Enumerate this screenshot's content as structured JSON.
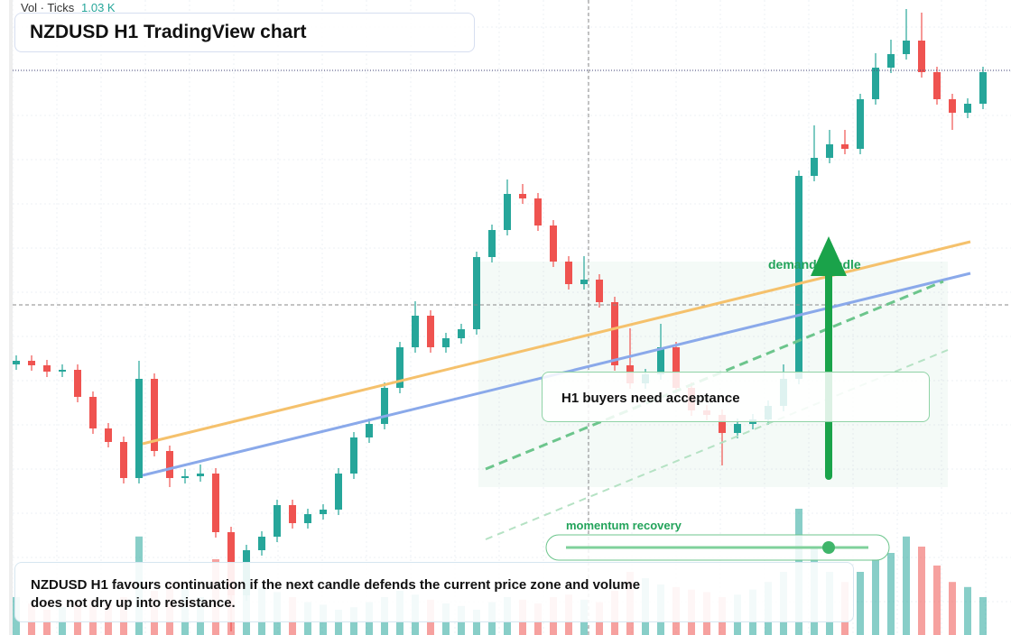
{
  "header": {
    "vol_label": "Vol · Ticks",
    "vol_value": "1.03 K",
    "title": "NZDUSD H1 TradingView chart"
  },
  "annotations": {
    "callout": "H1 buyers need acceptance",
    "zone_label": "demand handle",
    "slider_label": "momentum recovery",
    "summary": "NZDUSD H1 favours continuation if the next candle defends the current price zone and volume does not dry up into resistance."
  },
  "chart_data": {
    "type": "candlestick",
    "ylim": [
      0,
      704
    ],
    "volume_lim": [
      0,
      1000
    ],
    "up_color": "#26a69a",
    "down_color": "#ef5350",
    "open": [
      300,
      304,
      299,
      292,
      294,
      264,
      229,
      214,
      174,
      284,
      204,
      174,
      176,
      179,
      114,
      44,
      94,
      109,
      144,
      124,
      134,
      139,
      179,
      219,
      234,
      274,
      319,
      354,
      319,
      329,
      339,
      419,
      449,
      489,
      484,
      454,
      414,
      389,
      394,
      369,
      299,
      279,
      289,
      319,
      274,
      249,
      244,
      224,
      234,
      239,
      254,
      284,
      509,
      529,
      544,
      539,
      594,
      629,
      644,
      659,
      624,
      594,
      579,
      589
    ],
    "high": [
      310,
      310,
      305,
      300,
      300,
      270,
      235,
      220,
      304,
      290,
      210,
      184,
      189,
      185,
      120,
      100,
      115,
      150,
      150,
      140,
      145,
      185,
      225,
      240,
      280,
      325,
      370,
      360,
      335,
      345,
      425,
      455,
      505,
      500,
      490,
      460,
      420,
      420,
      400,
      375,
      340,
      295,
      345,
      325,
      280,
      255,
      250,
      240,
      245,
      260,
      300,
      515,
      565,
      560,
      560,
      600,
      645,
      660,
      694,
      690,
      630,
      600,
      595,
      630
    ],
    "low": [
      294,
      293,
      286,
      286,
      258,
      223,
      208,
      168,
      168,
      198,
      164,
      168,
      170,
      108,
      4,
      38,
      88,
      103,
      118,
      118,
      128,
      133,
      173,
      213,
      228,
      268,
      313,
      313,
      313,
      323,
      333,
      413,
      443,
      478,
      448,
      408,
      383,
      383,
      363,
      293,
      273,
      273,
      283,
      268,
      243,
      238,
      188,
      218,
      228,
      233,
      248,
      278,
      503,
      523,
      533,
      533,
      588,
      623,
      638,
      618,
      588,
      560,
      573,
      583
    ],
    "close": [
      304,
      299,
      292,
      294,
      264,
      229,
      214,
      174,
      284,
      204,
      174,
      176,
      179,
      114,
      44,
      94,
      109,
      144,
      124,
      134,
      139,
      179,
      219,
      234,
      274,
      319,
      354,
      319,
      329,
      339,
      419,
      449,
      489,
      484,
      454,
      414,
      389,
      394,
      369,
      299,
      279,
      289,
      319,
      274,
      249,
      244,
      224,
      234,
      239,
      254,
      284,
      509,
      529,
      544,
      539,
      594,
      629,
      644,
      659,
      624,
      594,
      579,
      589,
      624
    ],
    "volume": [
      300,
      250,
      200,
      220,
      260,
      280,
      240,
      300,
      780,
      350,
      420,
      380,
      300,
      600,
      700,
      450,
      380,
      340,
      300,
      260,
      240,
      200,
      220,
      260,
      300,
      350,
      320,
      280,
      250,
      230,
      200,
      260,
      300,
      280,
      250,
      300,
      320,
      280,
      260,
      350,
      500,
      450,
      400,
      380,
      360,
      340,
      300,
      320,
      360,
      420,
      500,
      1000,
      700,
      500,
      420,
      500,
      600,
      650,
      780,
      700,
      550,
      420,
      380,
      300
    ]
  }
}
